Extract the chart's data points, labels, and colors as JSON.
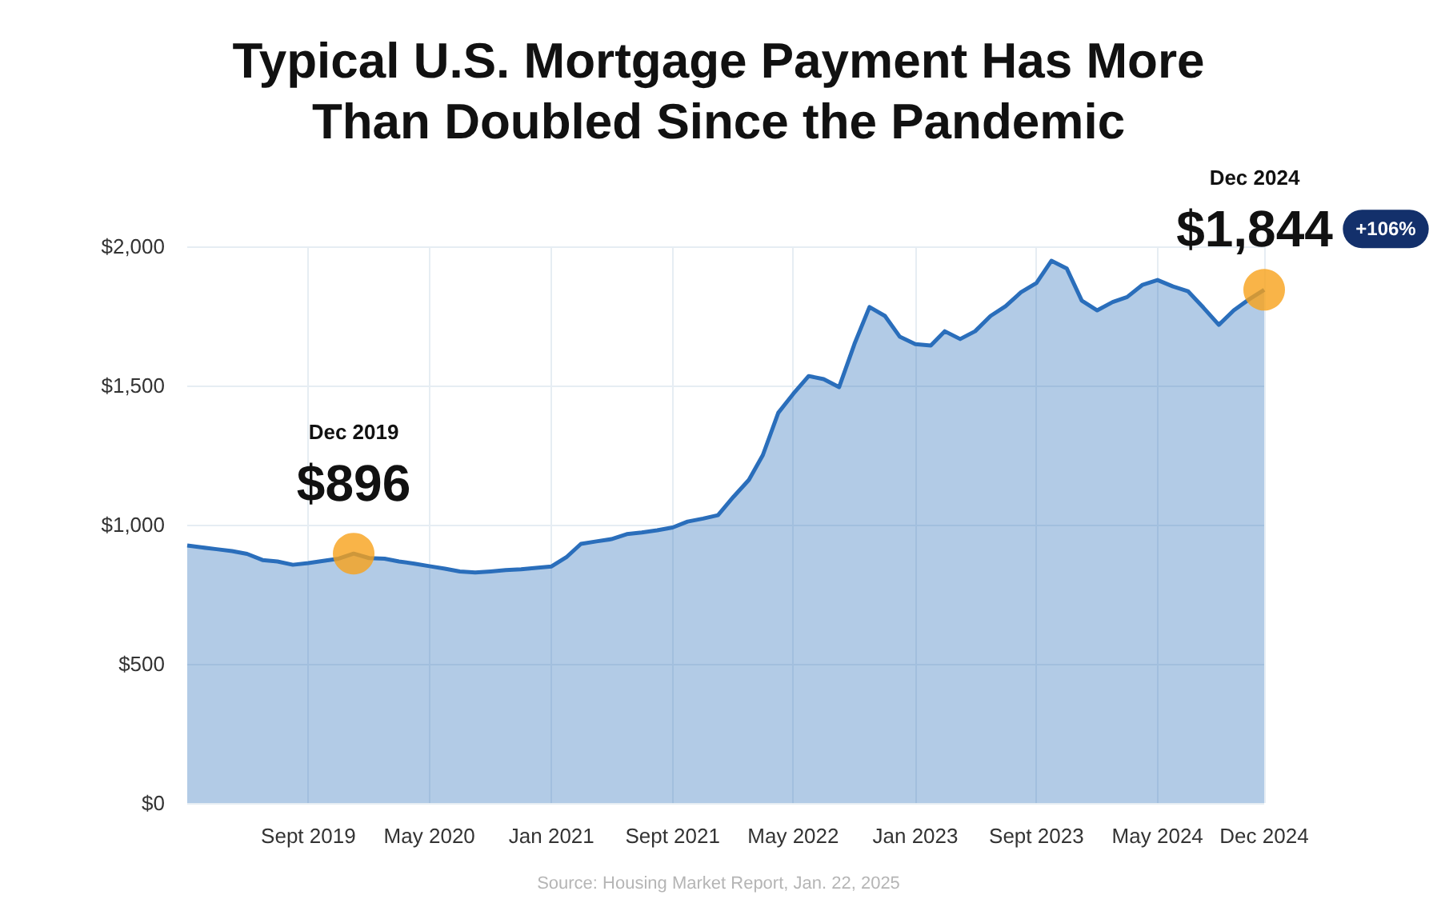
{
  "chart_data": {
    "type": "area",
    "title": "Typical U.S. Mortgage Payment Has More\nThan Doubled Since the Pandemic",
    "x": [
      "2019-01",
      "2019-02",
      "2019-03",
      "2019-04",
      "2019-05",
      "2019-06",
      "2019-07",
      "2019-08",
      "2019-09",
      "2019-10",
      "2019-11",
      "2019-12",
      "2020-01",
      "2020-02",
      "2020-03",
      "2020-04",
      "2020-05",
      "2020-06",
      "2020-07",
      "2020-08",
      "2020-09",
      "2020-10",
      "2020-11",
      "2020-12",
      "2021-01",
      "2021-02",
      "2021-03",
      "2021-04",
      "2021-05",
      "2021-06",
      "2021-07",
      "2021-08",
      "2021-09",
      "2021-10",
      "2021-11",
      "2021-12",
      "2022-01",
      "2022-02",
      "2022-03",
      "2022-04",
      "2022-05",
      "2022-06",
      "2022-07",
      "2022-08",
      "2022-09",
      "2022-10",
      "2022-11",
      "2022-12",
      "2023-01",
      "2023-02",
      "2023-03",
      "2023-04",
      "2023-05",
      "2023-06",
      "2023-07",
      "2023-08",
      "2023-09",
      "2023-10",
      "2023-11",
      "2023-12",
      "2024-01",
      "2024-02",
      "2024-03",
      "2024-04",
      "2024-05",
      "2024-06",
      "2024-07",
      "2024-08",
      "2024-09",
      "2024-10",
      "2024-11",
      "2024-12"
    ],
    "series": [
      {
        "color": "#2a6ebb",
        "values": [
          925,
          918,
          912,
          905,
          895,
          873,
          868,
          856,
          862,
          870,
          878,
          896,
          880,
          878,
          868,
          860,
          851,
          842,
          832,
          828,
          832,
          837,
          840,
          845,
          850,
          885,
          931,
          940,
          948,
          966,
          972,
          980,
          990,
          1011,
          1022,
          1034,
          1100,
          1161,
          1250,
          1402,
          1470,
          1534,
          1523,
          1494,
          1650,
          1782,
          1750,
          1675,
          1649,
          1644,
          1695,
          1667,
          1695,
          1750,
          1785,
          1835,
          1868,
          1948,
          1920,
          1805,
          1770,
          1800,
          1818,
          1862,
          1879,
          1856,
          1839,
          1780,
          1718,
          1770,
          1810,
          1844
        ]
      },
      {
        "type": "scatter",
        "color": "#f7a11a",
        "x": [
          "2019-12",
          "2024-12"
        ],
        "values": [
          896,
          1844
        ]
      }
    ],
    "xlim": [
      "2019-01",
      "2024-12"
    ],
    "xticks": [
      {
        "value": "2019-09",
        "label": "Sept 2019"
      },
      {
        "value": "2020-05",
        "label": "May 2020"
      },
      {
        "value": "2021-01",
        "label": "Jan 2021"
      },
      {
        "value": "2021-09",
        "label": "Sept 2021"
      },
      {
        "value": "2022-05",
        "label": "May 2022"
      },
      {
        "value": "2023-01",
        "label": "Jan 2023"
      },
      {
        "value": "2023-09",
        "label": "Sept 2023"
      },
      {
        "value": "2024-05",
        "label": "May 2024"
      },
      {
        "value": "2024-12",
        "label": "Dec 2024"
      }
    ],
    "ylim": [
      0,
      2000
    ],
    "yticks": [
      {
        "value": 0,
        "label": "$0"
      },
      {
        "value": 500,
        "label": "$500"
      },
      {
        "value": 1000,
        "label": "$1,000"
      },
      {
        "value": 1500,
        "label": "$1,500"
      },
      {
        "value": 2000,
        "label": "$2,000"
      }
    ],
    "grid": true,
    "line_style": "solid",
    "annotations": [
      "Source: Housing Market Report, Jan. 22, 2025",
      {
        "text": "$896",
        "x": "2019-12",
        "y": 896
      },
      "Dec 2019",
      {
        "text": "$1,844",
        "x": "2024-12",
        "y": 1844
      },
      "Dec 2024",
      "+106%"
    ]
  }
}
